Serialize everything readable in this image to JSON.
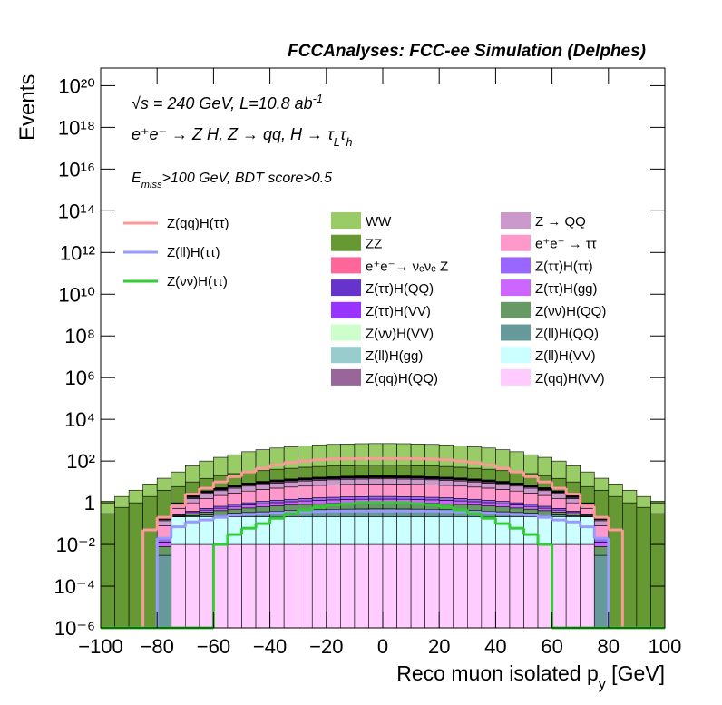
{
  "chart_data": {
    "type": "histogram",
    "title": "FCCAnalyses: FCC-ee Simulation (Delphes)",
    "annotations": [
      [
        {
          "text": "√s = 240 GeV, L=10.8 ab"
        },
        {
          "text": "-1",
          "shift": "sup"
        }
      ],
      [
        {
          "text": "e⁺e⁻ → Z H, Z → qq, H → τ"
        },
        {
          "text": "L",
          "shift": "sub"
        },
        {
          "text": "τ"
        },
        {
          "text": "h",
          "shift": "sub"
        }
      ],
      [
        {
          "text": "E"
        },
        {
          "text": "miss",
          "shift": "sub"
        },
        {
          "text": ">100 GeV, BDT score>0.5"
        }
      ]
    ],
    "y_label": "Events",
    "x_label": [
      {
        "text": "Reco muon isolated p"
      },
      {
        "text": "y",
        "shift": "sub"
      },
      {
        "text": " [GeV]"
      }
    ],
    "log_y": true,
    "xlim": [
      -100,
      100
    ],
    "xticks": [
      {
        "value": -100,
        "label": "−100"
      },
      {
        "value": -80,
        "label": "−80"
      },
      {
        "value": -60,
        "label": "−60"
      },
      {
        "value": -40,
        "label": "−40"
      },
      {
        "value": -20,
        "label": "−20"
      },
      0,
      20,
      40,
      60,
      80,
      100
    ],
    "ylim": [
      1e-06,
      7e+20
    ],
    "yticks": [
      {
        "value": 1e-06,
        "label": "10⁻⁶"
      },
      {
        "value": 0.0001,
        "label": "10⁻⁴"
      },
      {
        "value": 0.01,
        "label": "10⁻²"
      },
      1,
      {
        "value": 100,
        "label": "10²"
      },
      {
        "value": 10000,
        "label": "10⁴"
      },
      {
        "value": 1000000,
        "label": "10⁶"
      },
      {
        "value": 100000000,
        "label": "10⁸"
      },
      {
        "value": 10000000000,
        "label": "10¹⁰"
      },
      {
        "value": 1000000000000,
        "label": "10¹²"
      },
      {
        "value": 100000000000000,
        "label": "10¹⁴"
      },
      {
        "value": 10000000000000000,
        "label": "10¹⁶"
      },
      {
        "value": 1000000000000000000,
        "label": "10¹⁸"
      },
      {
        "value": 100000000000000000000,
        "label": "10²⁰"
      }
    ],
    "bins": [
      -100,
      -95,
      -90,
      -85,
      -80,
      -75,
      -70,
      -65,
      -60,
      -55,
      -50,
      -45,
      -40,
      -35,
      -30,
      -25,
      -20,
      -15,
      -10,
      -5,
      0,
      5,
      10,
      15,
      20,
      25,
      30,
      35,
      40,
      45,
      50,
      55,
      60,
      65,
      70,
      75,
      80,
      85,
      90,
      95,
      100
    ],
    "line_series": [
      {
        "name": "Z(qq)H(ττ)",
        "color": "#ff9999",
        "values": [
          0,
          0,
          0,
          0.05,
          0.2,
          0.7,
          2.6,
          5,
          10,
          18,
          30,
          45,
          65,
          85,
          100,
          115,
          125,
          130,
          132,
          133,
          133,
          132,
          130,
          125,
          115,
          100,
          85,
          65,
          45,
          30,
          18,
          10,
          5,
          2.6,
          0.7,
          0.2,
          0.05,
          0,
          0,
          0
        ]
      },
      {
        "name": "Z(ll)H(ττ)",
        "color": "#9999ff",
        "values": [
          0,
          0,
          0,
          0,
          0.02,
          0.07,
          0.12,
          0.15,
          0.2,
          0.25,
          0.28,
          0.3,
          0.33,
          0.35,
          0.37,
          0.38,
          0.4,
          0.4,
          0.4,
          0.4,
          0.4,
          0.4,
          0.4,
          0.4,
          0.38,
          0.37,
          0.35,
          0.33,
          0.3,
          0.28,
          0.25,
          0.2,
          0.15,
          0.12,
          0.07,
          0.02,
          0,
          0,
          0,
          0
        ]
      },
      {
        "name": "Z(νν)H(ττ)",
        "color": "#33cc33",
        "values": [
          0,
          0,
          0,
          0,
          0,
          0,
          0,
          0,
          0.01,
          0.03,
          0.06,
          0.1,
          0.18,
          0.3,
          0.45,
          0.6,
          0.8,
          0.9,
          1,
          1,
          1,
          1,
          0.9,
          0.8,
          0.6,
          0.45,
          0.3,
          0.18,
          0.1,
          0.06,
          0.03,
          0.01,
          0,
          0,
          0,
          0,
          0,
          0,
          0,
          0
        ]
      }
    ],
    "series": [
      {
        "name": "WW",
        "color": "#99cc66",
        "values": [
          0.9,
          1.4,
          3,
          6,
          11,
          24,
          50,
          85,
          130,
          175,
          250,
          315,
          380,
          435,
          490,
          535,
          572,
          600,
          618,
          627,
          627,
          618,
          600,
          572,
          535,
          490,
          435,
          380,
          315,
          250,
          175,
          130,
          85,
          50,
          24,
          11,
          6,
          3,
          1.4,
          0.9
        ]
      },
      {
        "name": "ZZ",
        "color": "#669933",
        "values": [
          0.3,
          0.6,
          1,
          2,
          3.8,
          5,
          7.8,
          11,
          15,
          18,
          21,
          24,
          28,
          31,
          35,
          38,
          40,
          41,
          43,
          43,
          43,
          43,
          41,
          40,
          38,
          35,
          31,
          28,
          24,
          21,
          18,
          15,
          11,
          7.8,
          5,
          3.8,
          2,
          1,
          0.6,
          0.3
        ]
      },
      {
        "name": "e⁺e⁻→ νₑνₑ Z",
        "color": "#ff6699",
        "values": [
          0,
          0,
          0,
          0,
          0.01,
          0.04,
          0.1,
          0.18,
          0.26,
          0.35,
          0.44,
          0.53,
          0.62,
          0.7,
          0.78,
          0.85,
          0.9,
          0.95,
          0.98,
          1,
          1,
          0.98,
          0.95,
          0.9,
          0.85,
          0.78,
          0.7,
          0.62,
          0.53,
          0.44,
          0.35,
          0.26,
          0.18,
          0.1,
          0.04,
          0.01,
          0,
          0,
          0,
          0
        ]
      },
      {
        "name": "Z(ττ)H(QQ)",
        "color": "#6633cc",
        "values": [
          0,
          0,
          0,
          0,
          0.01,
          0.04,
          0.1,
          0.18,
          0.26,
          0.35,
          0.44,
          0.53,
          0.62,
          0.7,
          0.78,
          0.85,
          0.9,
          0.95,
          0.98,
          1,
          1,
          0.98,
          0.95,
          0.9,
          0.85,
          0.78,
          0.7,
          0.62,
          0.53,
          0.44,
          0.35,
          0.26,
          0.18,
          0.1,
          0.04,
          0.01,
          0,
          0,
          0,
          0
        ]
      },
      {
        "name": "Z(ττ)H(VV)",
        "color": "#9933ff",
        "values": [
          0,
          0,
          0,
          0,
          0.005,
          0.02,
          0.05,
          0.09,
          0.13,
          0.175,
          0.22,
          0.265,
          0.31,
          0.35,
          0.39,
          0.425,
          0.45,
          0.475,
          0.49,
          0.5,
          0.5,
          0.49,
          0.475,
          0.45,
          0.425,
          0.39,
          0.35,
          0.31,
          0.265,
          0.22,
          0.175,
          0.13,
          0.09,
          0.05,
          0.02,
          0.005,
          0,
          0,
          0,
          0
        ]
      },
      {
        "name": "Z(νν)H(VV)",
        "color": "#ccffcc",
        "values": [
          0,
          0,
          0,
          0,
          0.01,
          0.04,
          0.1,
          0.18,
          0.26,
          0.35,
          0.44,
          0.53,
          0.62,
          0.7,
          0.78,
          0.85,
          0.9,
          0.95,
          0.98,
          1,
          1,
          0.98,
          0.95,
          0.9,
          0.85,
          0.78,
          0.7,
          0.62,
          0.53,
          0.44,
          0.35,
          0.26,
          0.18,
          0.1,
          0.04,
          0.01,
          0,
          0,
          0,
          0
        ]
      },
      {
        "name": "Z(ll)H(gg)",
        "color": "#99cccc",
        "values": [
          0,
          0,
          0,
          0,
          0.003,
          0.012,
          0.03,
          0.054,
          0.078,
          0.105,
          0.132,
          0.159,
          0.186,
          0.21,
          0.234,
          0.255,
          0.27,
          0.285,
          0.294,
          0.3,
          0.3,
          0.294,
          0.285,
          0.27,
          0.255,
          0.234,
          0.21,
          0.186,
          0.159,
          0.132,
          0.105,
          0.078,
          0.054,
          0.03,
          0.012,
          0.003,
          0,
          0,
          0,
          0
        ]
      },
      {
        "name": "Z(qq)H(QQ)",
        "color": "#996699",
        "values": [
          0,
          0,
          0,
          0,
          0.02,
          0.08,
          0.2,
          0.36,
          0.52,
          0.7,
          0.88,
          1.06,
          1.24,
          1.4,
          1.56,
          1.7,
          1.8,
          1.9,
          1.96,
          2,
          2,
          1.96,
          1.9,
          1.8,
          1.7,
          1.56,
          1.4,
          1.24,
          1.06,
          0.88,
          0.7,
          0.52,
          0.36,
          0.2,
          0.08,
          0.02,
          0,
          0,
          0,
          0
        ]
      },
      {
        "name": "Z → QQ",
        "color": "#cc99cc",
        "values": [
          0,
          0,
          0,
          0,
          0.06,
          0.24,
          0.6,
          1.08,
          1.56,
          2.1,
          2.64,
          3.18,
          3.72,
          4.2,
          4.68,
          5.1,
          5.4,
          5.7,
          5.88,
          6,
          6,
          5.88,
          5.7,
          5.4,
          5.1,
          4.68,
          4.2,
          3.72,
          3.18,
          2.64,
          2.1,
          1.56,
          1.08,
          0.6,
          0.24,
          0.06,
          0,
          0,
          0,
          0
        ]
      },
      {
        "name": "e⁺e⁻ → ττ",
        "color": "#ff99cc",
        "values": [
          0,
          0,
          0,
          0,
          0.06,
          0.24,
          0.6,
          1.08,
          1.56,
          2.1,
          2.64,
          3.18,
          3.72,
          4.2,
          4.68,
          5.1,
          5.4,
          5.7,
          5.88,
          6,
          6,
          5.88,
          5.7,
          5.4,
          5.1,
          4.68,
          4.2,
          3.72,
          3.18,
          2.64,
          2.1,
          1.56,
          1.08,
          0.6,
          0.24,
          0.06,
          0,
          0,
          0,
          0
        ]
      },
      {
        "name": "Z(ττ)H(ττ)",
        "color": "#9966ff",
        "values": [
          0,
          0,
          0,
          0,
          0.005,
          0.02,
          0.05,
          0.09,
          0.13,
          0.175,
          0.22,
          0.265,
          0.31,
          0.35,
          0.39,
          0.425,
          0.45,
          0.475,
          0.49,
          0.5,
          0.5,
          0.49,
          0.475,
          0.45,
          0.425,
          0.39,
          0.35,
          0.31,
          0.265,
          0.22,
          0.175,
          0.13,
          0.09,
          0.05,
          0.02,
          0.005,
          0,
          0,
          0,
          0
        ]
      },
      {
        "name": "Z(ττ)H(gg)",
        "color": "#cc66ff",
        "values": [
          0,
          0,
          0,
          0,
          0.005,
          0.02,
          0.05,
          0.09,
          0.13,
          0.175,
          0.22,
          0.265,
          0.31,
          0.35,
          0.39,
          0.425,
          0.45,
          0.475,
          0.49,
          0.5,
          0.5,
          0.49,
          0.475,
          0.45,
          0.425,
          0.39,
          0.35,
          0.31,
          0.265,
          0.22,
          0.175,
          0.13,
          0.09,
          0.05,
          0.02,
          0.005,
          0,
          0,
          0,
          0
        ]
      },
      {
        "name": "Z(νν)H(QQ)",
        "color": "#669966",
        "values": [
          0,
          0,
          0,
          0,
          0.005,
          0.02,
          0.05,
          0.09,
          0.13,
          0.175,
          0.22,
          0.265,
          0.31,
          0.35,
          0.39,
          0.425,
          0.45,
          0.475,
          0.49,
          0.5,
          0.5,
          0.49,
          0.475,
          0.45,
          0.425,
          0.39,
          0.35,
          0.31,
          0.265,
          0.22,
          0.175,
          0.13,
          0.09,
          0.05,
          0.02,
          0.005,
          0,
          0,
          0,
          0
        ]
      },
      {
        "name": "Z(ll)H(QQ)",
        "color": "#669999",
        "values": [
          0,
          0,
          0,
          0,
          0.003,
          0.012,
          0.03,
          0.054,
          0.078,
          0.105,
          0.132,
          0.159,
          0.186,
          0.21,
          0.234,
          0.255,
          0.27,
          0.285,
          0.294,
          0.3,
          0.3,
          0.294,
          0.285,
          0.27,
          0.255,
          0.234,
          0.21,
          0.186,
          0.159,
          0.132,
          0.105,
          0.078,
          0.054,
          0.03,
          0.012,
          0.003,
          0,
          0,
          0,
          0
        ]
      },
      {
        "name": "Z(ll)H(VV)",
        "color": "#ccffff",
        "values": [
          0,
          0,
          0,
          0,
          0,
          0.2,
          0.2,
          0.2,
          0.2,
          0.2,
          0.2,
          0.2,
          0.2,
          0.2,
          0.2,
          0.2,
          0.2,
          0.2,
          0.2,
          0.2,
          0.2,
          0.2,
          0.2,
          0.2,
          0.2,
          0.2,
          0.2,
          0.2,
          0.2,
          0.2,
          0.2,
          0.2,
          0.2,
          0.2,
          0.2,
          0,
          0,
          0,
          0,
          0
        ]
      },
      {
        "name": "Z(qq)H(VV)",
        "color": "#ffccff",
        "values": [
          0,
          0,
          0,
          0,
          0,
          0.01,
          0.01,
          0.01,
          0.01,
          0.01,
          0.01,
          0.01,
          0.01,
          0.01,
          0.01,
          0.01,
          0.01,
          0.01,
          0.01,
          0.01,
          0.01,
          0.01,
          0.01,
          0.01,
          0.01,
          0.01,
          0.01,
          0.01,
          0.01,
          0.01,
          0.01,
          0.01,
          0.01,
          0.01,
          0.01,
          0,
          0,
          0,
          0,
          0
        ]
      }
    ]
  }
}
